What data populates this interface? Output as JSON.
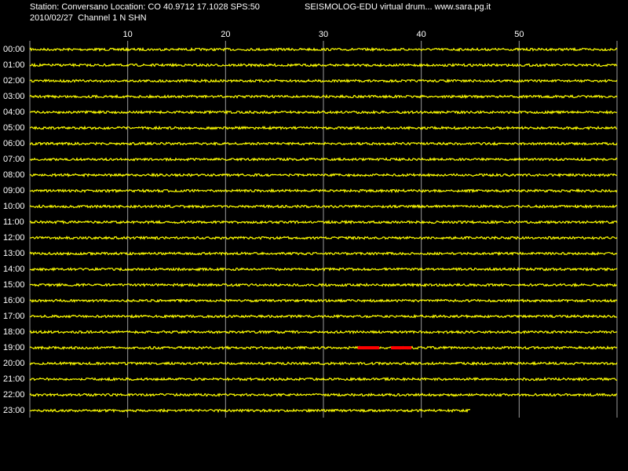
{
  "header": {
    "line1": "Station: Conversano Location: CO 40.9712 17.1028 SPS:50",
    "title": "SEISMOLOG-EDU virtual drum... www.sara.pg.it",
    "line2": "2010/02/27  Channel 1 N SHN"
  },
  "chart_data": {
    "type": "helicorder",
    "categories": [
      "00:00",
      "01:00",
      "02:00",
      "03:00",
      "04:00",
      "05:00",
      "06:00",
      "07:00",
      "08:00",
      "09:00",
      "10:00",
      "11:00",
      "12:00",
      "13:00",
      "14:00",
      "15:00",
      "16:00",
      "17:00",
      "18:00",
      "19:00",
      "20:00",
      "21:00",
      "22:00",
      "23:00"
    ],
    "values": [
      60,
      60,
      60,
      60,
      60,
      60,
      60,
      60,
      60,
      60,
      60,
      60,
      60,
      60,
      60,
      60,
      60,
      60,
      60,
      60,
      60,
      60,
      60,
      45
    ],
    "color": "#ffff00",
    "xlim": [
      0,
      60
    ],
    "xticks": [
      10,
      20,
      30,
      40,
      50
    ],
    "grid": true,
    "events": {
      "color": "#ff0000",
      "category": "19:00",
      "starts": [
        33.5,
        36.9
      ],
      "ends": [
        35.7,
        39
      ]
    }
  }
}
